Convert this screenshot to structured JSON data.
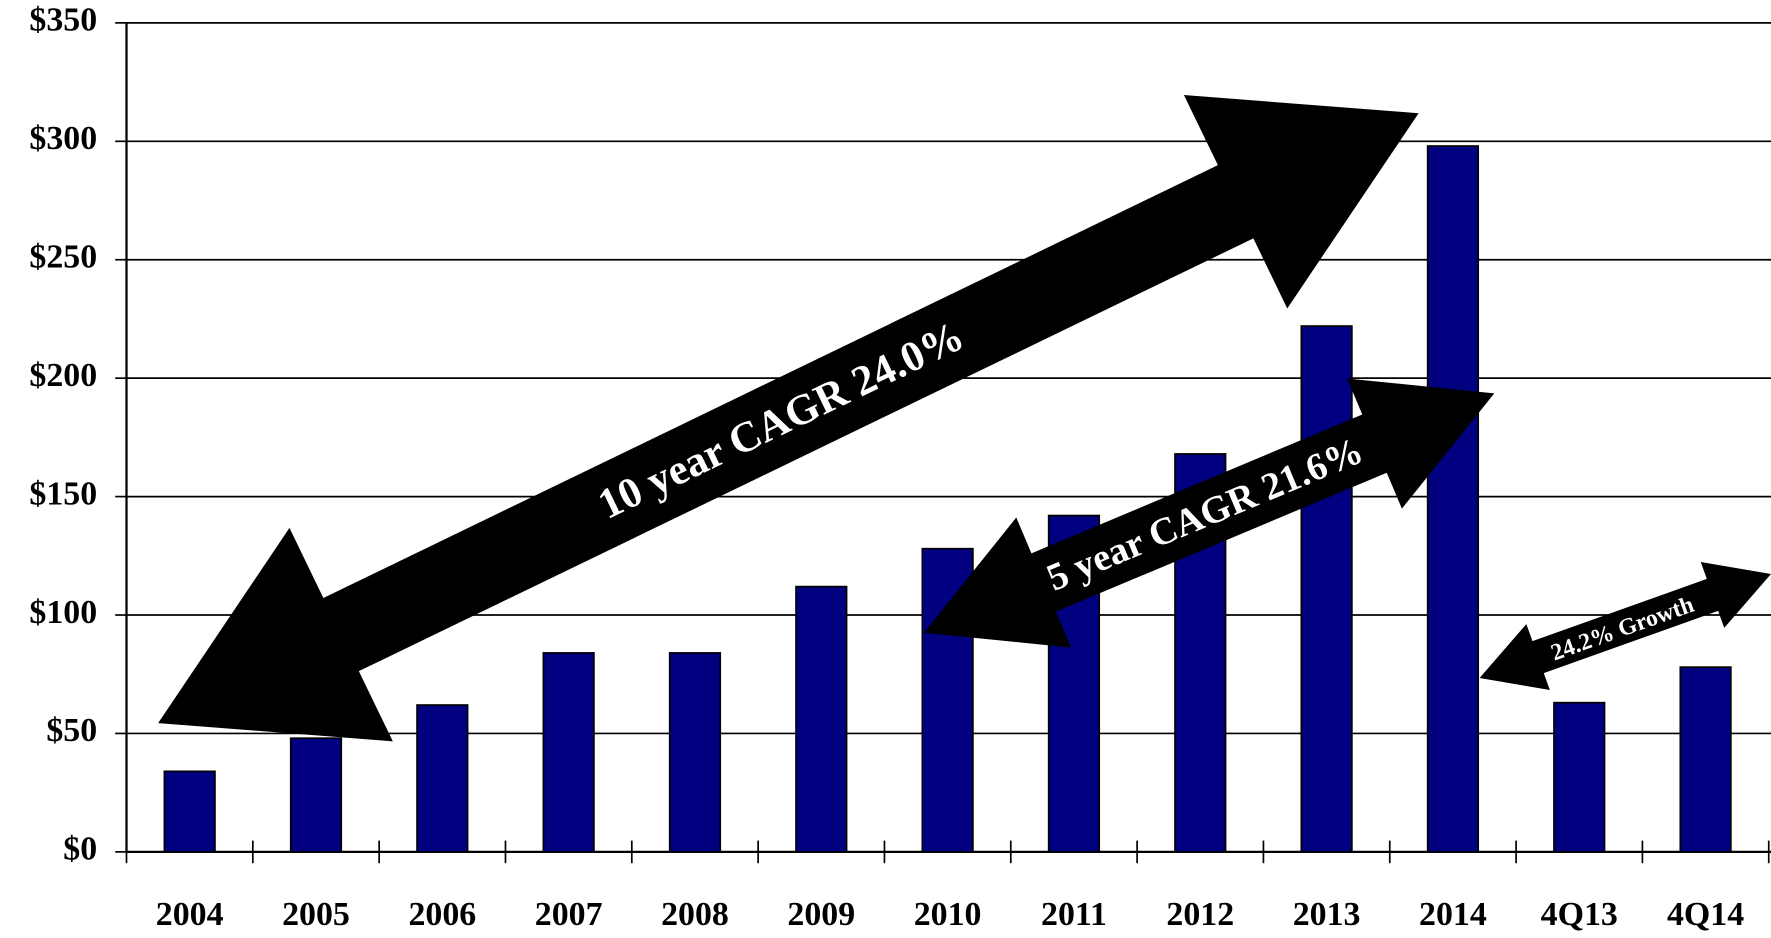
{
  "chart_data": {
    "type": "bar",
    "categories": [
      "2004",
      "2005",
      "2006",
      "2007",
      "2008",
      "2009",
      "2010",
      "2011",
      "2012",
      "2013",
      "2014",
      "4Q13",
      "4Q14"
    ],
    "values": [
      34,
      48,
      62,
      84,
      84,
      112,
      128,
      142,
      168,
      222,
      298,
      63,
      78
    ],
    "color": "#000080",
    "ylim": [
      0,
      350
    ],
    "yticks": [
      {
        "value": 0,
        "label": "$0"
      },
      {
        "value": 50,
        "label": "$50"
      },
      {
        "value": 100,
        "label": "$100"
      },
      {
        "value": 150,
        "label": "$150"
      },
      {
        "value": 200,
        "label": "$200"
      },
      {
        "value": 250,
        "label": "$250"
      },
      {
        "value": 300,
        "label": "$300"
      },
      {
        "value": 350,
        "label": "$350"
      }
    ],
    "grid": true,
    "annotations": [
      "10 year CAGR 24.0%",
      "5 year CAGR 21.6%",
      "24.2% Growth"
    ]
  }
}
